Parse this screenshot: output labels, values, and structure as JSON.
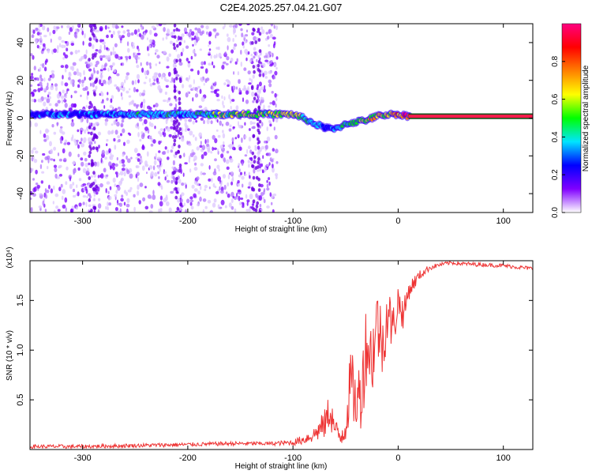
{
  "title": "C2E4.2025.257.04.21.G07",
  "chart_data": [
    {
      "type": "heatmap",
      "name": "spectrogram",
      "xlabel": "Height of straight line (km)",
      "ylabel": "Frequency (Hz)",
      "xlim": [
        -350,
        128
      ],
      "ylim": [
        -50,
        50
      ],
      "xticks": [
        -300,
        -200,
        -100,
        0,
        100
      ],
      "yticks": [
        -40,
        -20,
        0,
        20,
        40
      ],
      "colorbar": {
        "label": "Normalized spectral amplitude",
        "range": [
          0,
          1
        ],
        "ticks": [
          "0.0",
          "0.2",
          "0.4",
          "0.6",
          "0.8"
        ],
        "colors": [
          "#ffffff",
          "#8000ff",
          "#0000ff",
          "#00e5ff",
          "#00ff00",
          "#ffff00",
          "#ff8000",
          "#ff0000",
          "#ff0080"
        ]
      },
      "ridge": {
        "x": [
          -350,
          -300,
          -250,
          -200,
          -150,
          -120,
          -100,
          -90,
          -80,
          -70,
          -60,
          -50,
          -40,
          -30,
          -20,
          -10,
          0,
          10,
          128
        ],
        "freq": [
          2,
          2,
          2,
          2,
          2,
          2,
          2,
          0,
          -3,
          -5,
          -6,
          -3,
          -2,
          -1,
          1,
          2,
          2,
          1,
          1
        ],
        "amplitude": [
          0.3,
          0.3,
          0.4,
          0.4,
          0.6,
          0.55,
          0.6,
          0.5,
          0.4,
          0.3,
          0.3,
          0.5,
          0.5,
          0.6,
          0.7,
          0.7,
          0.8,
          0.95,
          0.95
        ]
      },
      "noise_extent_x": [
        -350,
        -115
      ]
    },
    {
      "type": "line",
      "name": "snr",
      "xlabel": "Height of straight line (km)",
      "ylabel": "SNR (10 * v/v)",
      "multiplier": "(x10⁴)",
      "xlim": [
        -350,
        128
      ],
      "ylim": [
        0,
        1.9
      ],
      "xticks": [
        -300,
        -200,
        -100,
        0,
        100
      ],
      "yticks": [
        "0.5",
        "1.0",
        "1.5"
      ],
      "series": [
        {
          "name": "SNR",
          "color": "#ee3333",
          "x": [
            -350,
            -300,
            -250,
            -200,
            -160,
            -120,
            -100,
            -90,
            -80,
            -70,
            -65,
            -60,
            -55,
            -50,
            -45,
            -40,
            -35,
            -30,
            -25,
            -20,
            -15,
            -10,
            -5,
            0,
            5,
            10,
            20,
            30,
            40,
            50,
            60,
            80,
            100,
            128
          ],
          "y": [
            0.03,
            0.03,
            0.04,
            0.05,
            0.06,
            0.06,
            0.07,
            0.1,
            0.15,
            0.25,
            0.4,
            0.2,
            0.12,
            0.25,
            0.7,
            0.45,
            0.6,
            1.1,
            0.9,
            1.3,
            1.05,
            1.4,
            1.2,
            1.5,
            1.35,
            1.6,
            1.75,
            1.83,
            1.86,
            1.88,
            1.87,
            1.86,
            1.85,
            1.82
          ],
          "noise": [
            0.02,
            0.02,
            0.02,
            0.02,
            0.02,
            0.02,
            0.03,
            0.05,
            0.08,
            0.15,
            0.2,
            0.12,
            0.1,
            0.2,
            0.35,
            0.3,
            0.4,
            0.45,
            0.4,
            0.4,
            0.35,
            0.3,
            0.25,
            0.2,
            0.15,
            0.1,
            0.05,
            0.03,
            0.02,
            0.02,
            0.02,
            0.02,
            0.02,
            0.02
          ]
        }
      ]
    }
  ]
}
